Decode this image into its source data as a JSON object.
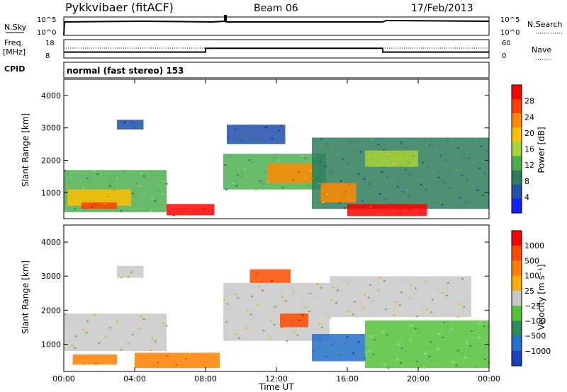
{
  "header": {
    "radar": "Pykkvibaer (fitACF)",
    "beam": "Beam 06",
    "date": "17/Feb/2013"
  },
  "top_panels": {
    "nsky_label": "N.Sky",
    "nsearch_label": "N.Search",
    "freq_label_line1": "Freq.",
    "freq_label_line2": "[MHz]",
    "nave_label": "Nave",
    "cpid_label": "CPID",
    "cpid_text": "normal (fast stereo) 153",
    "noise_ticks": [
      "10^5",
      "10^0"
    ],
    "freq_ticks": [
      "18",
      "8"
    ],
    "nave_ticks": [
      "60",
      "0"
    ],
    "freq_steps": [
      {
        "start_hour": 0,
        "end_hour": 8,
        "freq_mhz": 11.2
      },
      {
        "start_hour": 8,
        "end_hour": 18,
        "freq_mhz": 13.3
      },
      {
        "start_hour": 18,
        "end_hour": 24,
        "freq_mhz": 11.2
      }
    ]
  },
  "chart_data": [
    {
      "type": "heatmap",
      "name": "power",
      "ylabel": "Slant Range [km]",
      "yticks": [
        "1000",
        "2000",
        "3000",
        "4000"
      ],
      "ylim": [
        200,
        4500
      ],
      "xlim": [
        0,
        24
      ],
      "colorbar_label": "Power [dB]",
      "colorbar_ticks": [
        "4",
        "8",
        "12",
        "16",
        "20",
        "24",
        "28"
      ],
      "colorbar_colors": [
        "#1020ff",
        "#1f4fa8",
        "#2e7d5a",
        "#4caf50",
        "#a6d23a",
        "#ffc000",
        "#ff8a00",
        "#ff4000",
        "#ff0000"
      ],
      "blocks": [
        {
          "t0": 0.0,
          "t1": 5.8,
          "r0": 400,
          "r1": 1700,
          "level": 3
        },
        {
          "t0": 0.2,
          "t1": 3.8,
          "r0": 600,
          "r1": 1100,
          "level": 5
        },
        {
          "t0": 1.0,
          "t1": 3.0,
          "r0": 500,
          "r1": 700,
          "level": 7
        },
        {
          "t0": 5.8,
          "t1": 8.5,
          "r0": 300,
          "r1": 650,
          "level": 8
        },
        {
          "t0": 3.0,
          "t1": 4.5,
          "r0": 2950,
          "r1": 3250,
          "level": 1
        },
        {
          "t0": 9.0,
          "t1": 14.8,
          "r0": 1100,
          "r1": 2200,
          "level": 3
        },
        {
          "t0": 11.5,
          "t1": 14.2,
          "r0": 1300,
          "r1": 1900,
          "level": 6
        },
        {
          "t0": 9.2,
          "t1": 12.5,
          "r0": 2500,
          "r1": 3100,
          "level": 1
        },
        {
          "t0": 14.0,
          "t1": 24.0,
          "r0": 500,
          "r1": 2700,
          "level": 2
        },
        {
          "t0": 16.0,
          "t1": 20.5,
          "r0": 280,
          "r1": 650,
          "level": 8
        },
        {
          "t0": 14.5,
          "t1": 16.5,
          "r0": 700,
          "r1": 1300,
          "level": 6
        },
        {
          "t0": 17.0,
          "t1": 20.0,
          "r0": 1800,
          "r1": 2300,
          "level": 4
        }
      ]
    },
    {
      "type": "heatmap",
      "name": "velocity",
      "ylabel": "Slant Range [km]",
      "yticks": [
        "1000",
        "2000",
        "3000",
        "4000"
      ],
      "ylim": [
        200,
        4500
      ],
      "xlim": [
        0,
        24
      ],
      "xticks": [
        "00:00",
        "04:00",
        "08:00",
        "12:00",
        "16:00",
        "20:00",
        "00:00"
      ],
      "xlabel": "Time UT",
      "colorbar_label": "Velocity [m s⁻¹]",
      "colorbar_ticks": [
        "1000",
        "500",
        "100",
        "25",
        "−25",
        "−100",
        "−500",
        "−1000"
      ],
      "colorbar_colors": [
        "#1a3fbf",
        "#2270c8",
        "#2e8b57",
        "#56c23a",
        "#c8c8c8",
        "#ffb000",
        "#ff8000",
        "#ff4a00",
        "#ff0000"
      ],
      "blocks": [
        {
          "t0": 0.0,
          "t1": 5.8,
          "r0": 800,
          "r1": 1900,
          "level": 4
        },
        {
          "t0": 0.5,
          "t1": 3.0,
          "r0": 400,
          "r1": 700,
          "level": 6
        },
        {
          "t0": 4.0,
          "t1": 8.8,
          "r0": 300,
          "r1": 750,
          "level": 6
        },
        {
          "t0": 3.0,
          "t1": 4.5,
          "r0": 2950,
          "r1": 3300,
          "level": 4
        },
        {
          "t0": 9.0,
          "t1": 15.0,
          "r0": 1100,
          "r1": 2800,
          "level": 4
        },
        {
          "t0": 12.2,
          "t1": 13.8,
          "r0": 1500,
          "r1": 1900,
          "level": 7
        },
        {
          "t0": 10.5,
          "t1": 12.8,
          "r0": 2800,
          "r1": 3200,
          "level": 7
        },
        {
          "t0": 14.0,
          "t1": 17.0,
          "r0": 500,
          "r1": 1300,
          "level": 1
        },
        {
          "t0": 17.0,
          "t1": 24.0,
          "r0": 300,
          "r1": 1700,
          "level": 3
        },
        {
          "t0": 15.0,
          "t1": 23.0,
          "r0": 1800,
          "r1": 3000,
          "level": 4
        }
      ]
    }
  ]
}
